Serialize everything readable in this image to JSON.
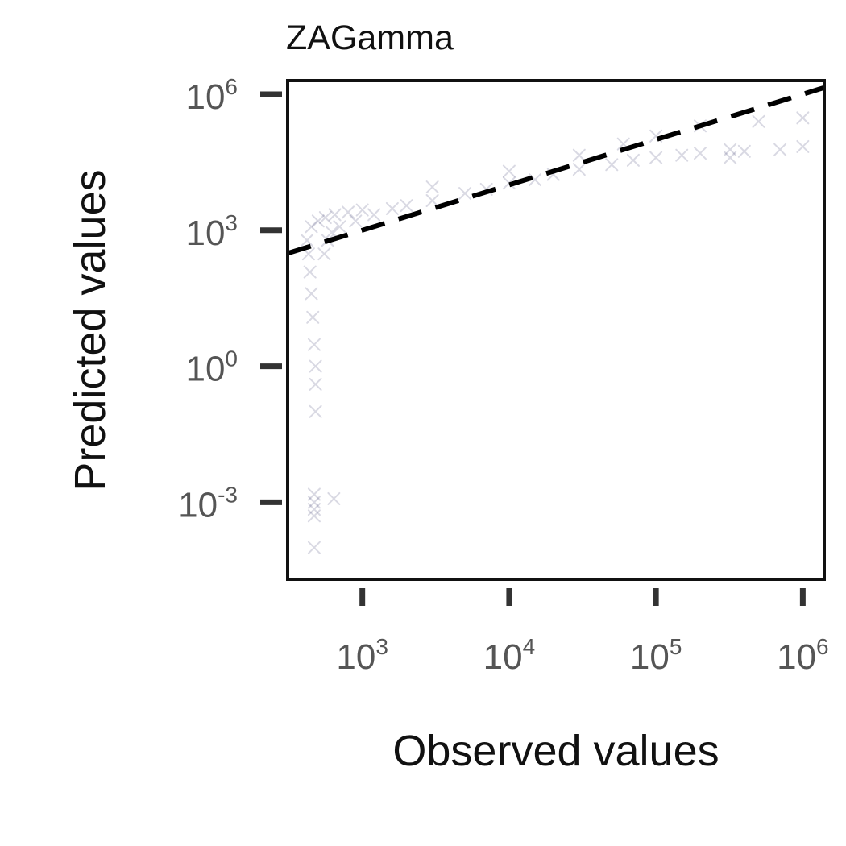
{
  "chart_data": {
    "type": "scatter",
    "title": "ZAGamma",
    "xlabel": "Observed values",
    "ylabel": "Predicted values",
    "x_scale": "log",
    "y_scale": "log",
    "xlim": [
      310,
      1400000
    ],
    "ylim": [
      2e-05,
      2000000
    ],
    "x_ticks": [
      {
        "value": 1000,
        "base": "10",
        "exp": "3"
      },
      {
        "value": 10000,
        "base": "10",
        "exp": "4"
      },
      {
        "value": 100000,
        "base": "10",
        "exp": "5"
      },
      {
        "value": 1000000,
        "base": "10",
        "exp": "6"
      }
    ],
    "y_ticks": [
      {
        "value": 0.001,
        "base": "10",
        "exp": "-3"
      },
      {
        "value": 1,
        "base": "10",
        "exp": "0"
      },
      {
        "value": 1000,
        "base": "10",
        "exp": "3"
      },
      {
        "value": 1000000,
        "base": "10",
        "exp": "6"
      }
    ],
    "grid": false,
    "legend": "none",
    "series": [
      {
        "marker": "x",
        "color": "#2b2c66",
        "points": [
          {
            "x": 420,
            "y": 600
          },
          {
            "x": 430,
            "y": 300
          },
          {
            "x": 440,
            "y": 120
          },
          {
            "x": 450,
            "y": 40
          },
          {
            "x": 460,
            "y": 12
          },
          {
            "x": 470,
            "y": 3
          },
          {
            "x": 480,
            "y": 1
          },
          {
            "x": 480,
            "y": 0.4
          },
          {
            "x": 480,
            "y": 0.1
          },
          {
            "x": 470,
            "y": 0.0015
          },
          {
            "x": 470,
            "y": 0.001
          },
          {
            "x": 470,
            "y": 0.0007
          },
          {
            "x": 470,
            "y": 0.0005
          },
          {
            "x": 470,
            "y": 0.0001
          },
          {
            "x": 640,
            "y": 0.0012
          },
          {
            "x": 450,
            "y": 1200
          },
          {
            "x": 500,
            "y": 1600
          },
          {
            "x": 560,
            "y": 1900
          },
          {
            "x": 650,
            "y": 2200
          },
          {
            "x": 800,
            "y": 2500
          },
          {
            "x": 1000,
            "y": 2800
          },
          {
            "x": 550,
            "y": 300
          },
          {
            "x": 580,
            "y": 600
          },
          {
            "x": 620,
            "y": 900
          },
          {
            "x": 700,
            "y": 1200
          },
          {
            "x": 900,
            "y": 1600
          },
          {
            "x": 1200,
            "y": 2200
          },
          {
            "x": 1600,
            "y": 3000
          },
          {
            "x": 2000,
            "y": 3500
          },
          {
            "x": 3000,
            "y": 4500
          },
          {
            "x": 5000,
            "y": 6500
          },
          {
            "x": 7000,
            "y": 8000
          },
          {
            "x": 10000,
            "y": 11000
          },
          {
            "x": 15000,
            "y": 13000
          },
          {
            "x": 20000,
            "y": 17000
          },
          {
            "x": 30000,
            "y": 22000
          },
          {
            "x": 50000,
            "y": 28000
          },
          {
            "x": 70000,
            "y": 35000
          },
          {
            "x": 100000,
            "y": 40000
          },
          {
            "x": 150000,
            "y": 45000
          },
          {
            "x": 200000,
            "y": 50000
          },
          {
            "x": 320000,
            "y": 60000
          },
          {
            "x": 320000,
            "y": 40000
          },
          {
            "x": 3000,
            "y": 9000
          },
          {
            "x": 10000,
            "y": 20000
          },
          {
            "x": 30000,
            "y": 45000
          },
          {
            "x": 60000,
            "y": 80000
          },
          {
            "x": 100000,
            "y": 120000
          },
          {
            "x": 200000,
            "y": 200000
          },
          {
            "x": 500000,
            "y": 250000
          },
          {
            "x": 1000000,
            "y": 300000
          },
          {
            "x": 1000000,
            "y": 70000
          },
          {
            "x": 700000,
            "y": 60000
          },
          {
            "x": 400000,
            "y": 55000
          }
        ]
      }
    ],
    "reference_line": {
      "style": "dashed",
      "color": "#000000",
      "points": [
        {
          "x": 310,
          "y": 310
        },
        {
          "x": 1400000,
          "y": 1400000
        }
      ]
    }
  }
}
